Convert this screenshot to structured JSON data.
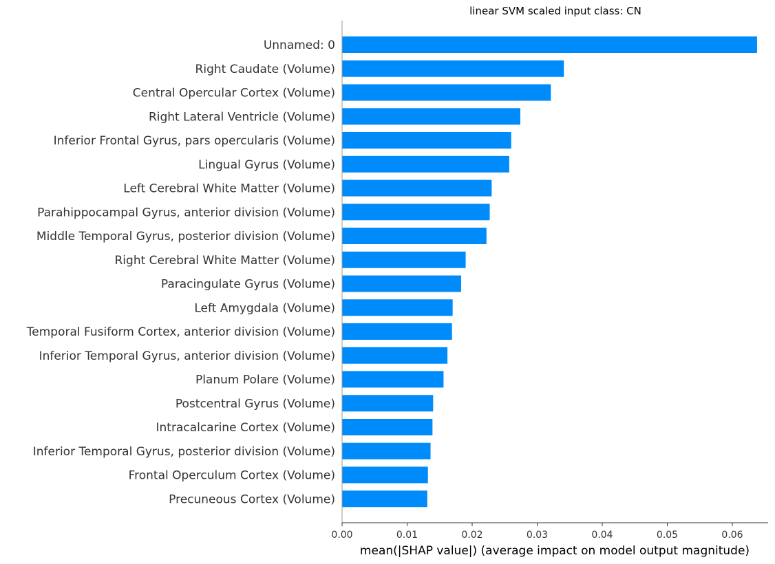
{
  "chart_data": {
    "type": "bar",
    "orientation": "horizontal",
    "title": "linear SVM scaled input class: CN",
    "xlabel": "mean(|SHAP value|) (average impact on model output magnitude)",
    "ylabel": "",
    "xlim": [
      0.0,
      0.0655
    ],
    "xticks": [
      "0.00",
      "0.01",
      "0.02",
      "0.03",
      "0.04",
      "0.05",
      "0.06"
    ],
    "grid": false,
    "bar_color": "#008bfb",
    "categories": [
      "Unnamed: 0",
      "Right Caudate (Volume)",
      "Central Opercular Cortex (Volume)",
      "Right Lateral Ventricle (Volume)",
      "Inferior Frontal Gyrus, pars opercularis (Volume)",
      "Lingual Gyrus (Volume)",
      "Left Cerebral White Matter (Volume)",
      "Parahippocampal Gyrus, anterior division (Volume)",
      "Middle Temporal Gyrus, posterior division (Volume)",
      "Right Cerebral White Matter (Volume)",
      "Paracingulate Gyrus (Volume)",
      "Left Amygdala (Volume)",
      "Temporal Fusiform Cortex, anterior division (Volume)",
      "Inferior Temporal Gyrus, anterior division (Volume)",
      "Planum Polare (Volume)",
      "Postcentral Gyrus (Volume)",
      "Intracalcarine Cortex (Volume)",
      "Inferior Temporal Gyrus, posterior division (Volume)",
      "Frontal Operculum Cortex (Volume)",
      "Precuneous Cortex (Volume)"
    ],
    "values": [
      0.0638,
      0.0341,
      0.0321,
      0.0274,
      0.026,
      0.0257,
      0.023,
      0.0227,
      0.0222,
      0.019,
      0.0183,
      0.017,
      0.0169,
      0.0162,
      0.0156,
      0.014,
      0.0139,
      0.0136,
      0.0132,
      0.0131
    ]
  }
}
